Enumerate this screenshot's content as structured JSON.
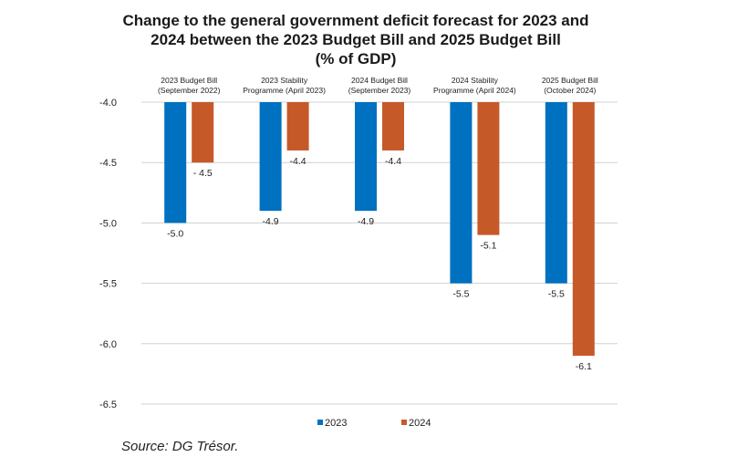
{
  "chart_data": {
    "type": "bar",
    "title_lines": [
      "Change to the general government deficit forecast for 2023 and",
      "2024 between the 2023 Budget Bill and 2025 Budget Bill",
      "(% of GDP)"
    ],
    "categories": [
      [
        "2023 Budget Bill",
        "(September 2022)"
      ],
      [
        "2023 Stability",
        "Programme (April 2023)"
      ],
      [
        "2024 Budget Bill",
        "(September 2023)"
      ],
      [
        "2024 Stability",
        "Programme (April 2024)"
      ],
      [
        "2025 Budget Bill",
        "(October 2024)"
      ]
    ],
    "series": [
      {
        "name": "2023",
        "color": "#0070C0",
        "values": [
          -5.0,
          -4.9,
          -4.9,
          -5.5,
          -5.5
        ],
        "labels": [
          "-5.0",
          "-4.9",
          "-4.9",
          "-5.5",
          "-5.5"
        ]
      },
      {
        "name": "2024",
        "color": "#C55A28",
        "values": [
          -4.5,
          -4.4,
          -4.4,
          -5.1,
          -6.1
        ],
        "labels": [
          "- 4.5",
          "-4.4",
          "-4.4",
          "-5.1",
          "-6.1"
        ]
      }
    ],
    "yticks": [
      "-4.0",
      "-4.5",
      "-5.0",
      "-5.5",
      "-6.0",
      "-6.5"
    ],
    "ylim": [
      -6.5,
      -4.0
    ],
    "xlabel": "",
    "ylabel": "",
    "grid": true,
    "legend": "bottom-center"
  },
  "source": "Source: DG Trésor."
}
